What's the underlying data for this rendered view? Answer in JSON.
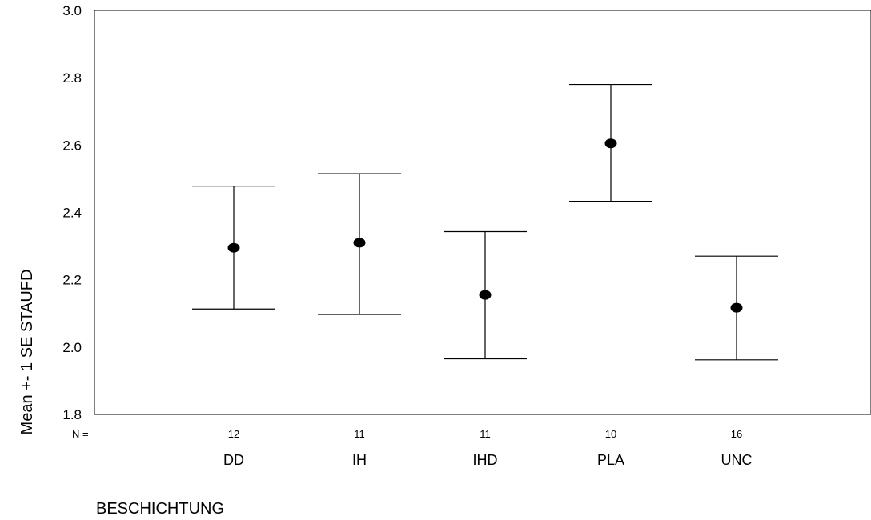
{
  "chart_data": {
    "type": "scatter",
    "subtype": "error-bar",
    "xlabel": "BESCHICHTUNG",
    "ylabel": "Mean +- 1 SE STAUFD",
    "ylim": [
      1.8,
      3.0
    ],
    "yticks": [
      "3.0",
      "2.8",
      "2.6",
      "2.4",
      "2.2",
      "2.0",
      "1.8"
    ],
    "n_prefix": "N =",
    "categories": [
      "DD",
      "IH",
      "IHD",
      "PLA",
      "UNC"
    ],
    "n": [
      "12",
      "11",
      "11",
      "10",
      "16"
    ],
    "means": [
      2.295,
      2.31,
      2.155,
      2.605,
      2.117
    ],
    "upper": [
      2.478,
      2.515,
      2.343,
      2.78,
      2.27
    ],
    "lower": [
      2.113,
      2.097,
      1.965,
      2.433,
      1.962
    ],
    "grid": false,
    "marker_color": "#000000"
  }
}
